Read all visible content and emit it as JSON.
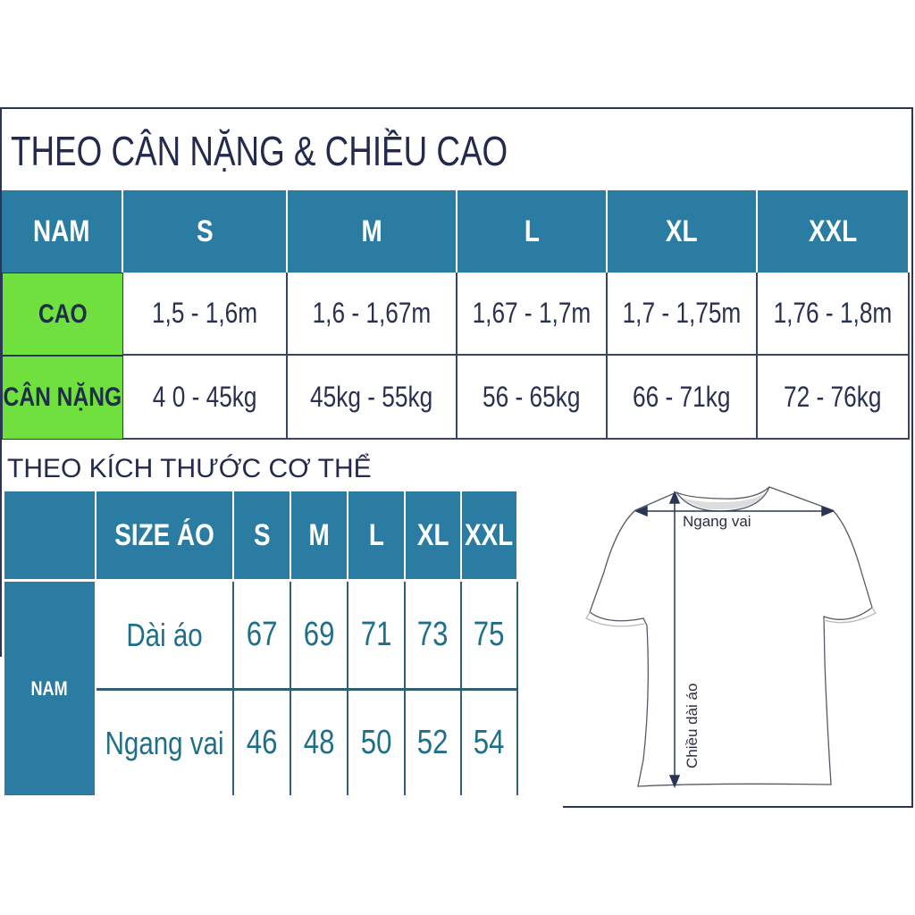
{
  "weight_height_section": {
    "title": "THEO CÂN NẶNG & CHIỀU CAO",
    "header": [
      "NAM",
      "S",
      "M",
      "L",
      "XL",
      "XXL"
    ],
    "rows": [
      {
        "label": "CAO",
        "values": [
          "1,5 - 1,6m",
          "1,6 - 1,67m",
          "1,67 - 1,7m",
          "1,7 - 1,75m",
          "1,76 - 1,8m"
        ]
      },
      {
        "label": "CÂN NẶNG",
        "values": [
          "4 0 - 45kg",
          "45kg - 55kg",
          "56 - 65kg",
          "66 - 71kg",
          "72 - 76kg"
        ]
      }
    ],
    "colors": {
      "header": "#2a7ca3",
      "row_label": "#6fe03e"
    }
  },
  "body_size_section": {
    "title": "THEO KÍCH THƯỚC CƠ THỂ",
    "header": [
      "SIZE ÁO",
      "S",
      "M",
      "L",
      "XL",
      "XXL"
    ],
    "group_label": "NAM",
    "rows": [
      {
        "label": "Dài áo",
        "values": [
          "67",
          "69",
          "71",
          "73",
          "75"
        ]
      },
      {
        "label": "Ngang vai",
        "values": [
          "46",
          "48",
          "50",
          "52",
          "54"
        ]
      }
    ]
  },
  "shirt_diagram": {
    "width_label": "Ngang vai",
    "length_label": "Chiều dài áo"
  }
}
